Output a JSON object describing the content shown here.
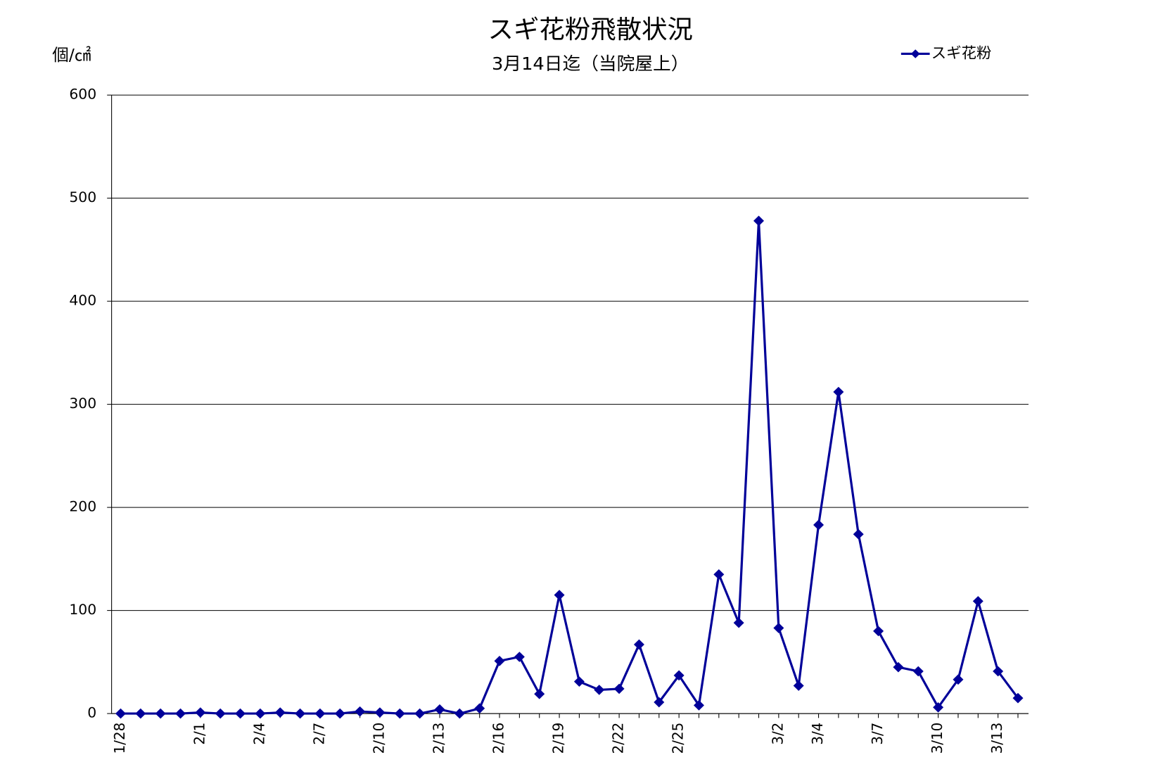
{
  "chart_data": {
    "type": "line",
    "title": "スギ花粉飛散状況",
    "subtitle": "3月14日迄（当院屋上）",
    "y_label": "個/㎠",
    "categories": [
      "1/28",
      null,
      null,
      null,
      "2/1",
      null,
      null,
      "2/4",
      null,
      null,
      "2/7",
      null,
      null,
      "2/10",
      null,
      null,
      "2/13",
      null,
      null,
      "2/16",
      null,
      null,
      "2/19",
      null,
      null,
      "2/22",
      null,
      null,
      "2/25",
      null,
      null,
      null,
      null,
      "3/2",
      null,
      "3/4",
      null,
      null,
      "3/7",
      null,
      null,
      "3/10",
      null,
      null,
      "3/13",
      null
    ],
    "series": [
      {
        "name": "スギ花粉",
        "color": "#000099",
        "values": [
          0,
          0,
          0,
          0,
          1,
          0,
          0,
          0,
          1,
          0,
          0,
          0,
          2,
          1,
          0,
          0,
          4,
          0,
          5,
          51,
          55,
          19,
          115,
          31,
          23,
          24,
          67,
          11,
          37,
          8,
          135,
          88,
          478,
          83,
          27,
          183,
          312,
          174,
          80,
          45,
          41,
          6,
          33,
          109,
          41,
          15
        ]
      }
    ],
    "ylim": [
      0,
      600
    ],
    "yticks": [
      0,
      100,
      200,
      300,
      400,
      500,
      600
    ],
    "grid": true,
    "legend": "top-right"
  }
}
